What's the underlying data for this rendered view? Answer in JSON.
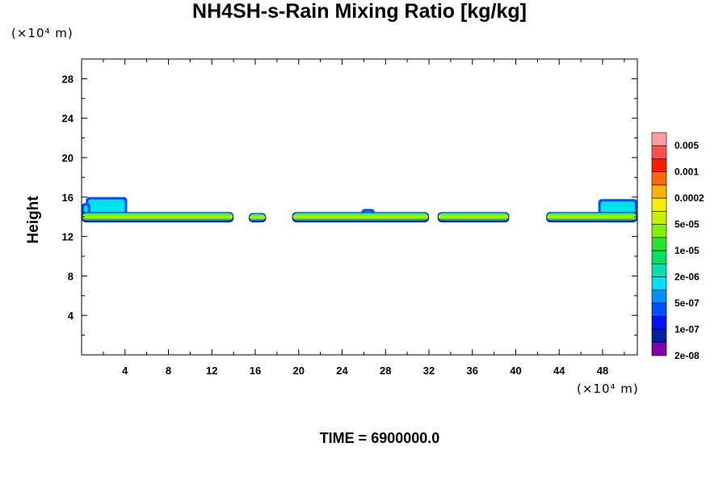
{
  "chart_data": {
    "type": "heatmap",
    "title": "NH4SH-s-Rain Mixing Ratio [kg/kg]",
    "ylabel": "Height",
    "x_unit": "(×10⁴ m)",
    "y_unit": "(×10⁴ m)",
    "xlim": [
      0,
      51.2
    ],
    "ylim": [
      0,
      30
    ],
    "x_ticks": [
      4,
      8,
      12,
      16,
      20,
      24,
      28,
      32,
      36,
      40,
      44,
      48
    ],
    "y_ticks": [
      4,
      8,
      12,
      16,
      20,
      24,
      28
    ],
    "colorbar": {
      "labels": [
        "0.005",
        "0.001",
        "0.0002",
        "5e-05",
        "1e-05",
        "2e-06",
        "5e-07",
        "1e-07",
        "2e-08"
      ],
      "colors": [
        "#ff9e9e",
        "#ff5050",
        "#ff1a00",
        "#ff6a00",
        "#ffb000",
        "#f0f000",
        "#c8f000",
        "#80f000",
        "#30e030",
        "#00e060",
        "#00e0b0",
        "#00e0f0",
        "#0090ff",
        "#0050ff",
        "#0010ff",
        "#0020a0",
        "#8000b0"
      ]
    },
    "layer": {
      "base_height": 13.6,
      "segments": [
        {
          "x_start": 0.0,
          "x_end": 14.0,
          "top": 14.4
        },
        {
          "x_start": 15.4,
          "x_end": 17.0,
          "top": 14.3
        },
        {
          "x_start": 19.4,
          "x_end": 32.0,
          "top": 14.4
        },
        {
          "x_start": 32.8,
          "x_end": 39.4,
          "top": 14.4
        },
        {
          "x_start": 42.8,
          "x_end": 51.2,
          "top": 14.4
        }
      ],
      "upper_patches": [
        {
          "x_start": 0.4,
          "x_end": 4.2,
          "top": 16.0
        },
        {
          "x_start": 0.0,
          "x_end": 0.8,
          "top": 15.4
        },
        {
          "x_start": 25.8,
          "x_end": 27.0,
          "top": 14.8
        },
        {
          "x_start": 47.6,
          "x_end": 51.2,
          "top": 15.8
        }
      ]
    }
  },
  "time_label": "TIME = 6900000.0"
}
